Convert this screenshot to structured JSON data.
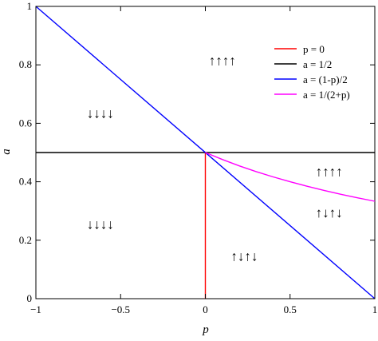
{
  "chart_data": {
    "type": "line",
    "xlabel": "p",
    "ylabel": "a",
    "xlim": [
      -1,
      1
    ],
    "ylim": [
      0,
      1
    ],
    "x_ticks": [
      {
        "value": -1,
        "label": "−1"
      },
      {
        "value": -0.5,
        "label": "−0.5"
      },
      {
        "value": 0,
        "label": "0"
      },
      {
        "value": 0.5,
        "label": "0.5"
      },
      {
        "value": 1,
        "label": "1"
      }
    ],
    "y_ticks": [
      {
        "value": 0,
        "label": "0"
      },
      {
        "value": 0.2,
        "label": "0.2"
      },
      {
        "value": 0.4,
        "label": "0.4"
      },
      {
        "value": 0.6,
        "label": "0.6"
      },
      {
        "value": 0.8,
        "label": "0.8"
      },
      {
        "value": 1,
        "label": "1"
      }
    ],
    "legend_position": "top-right",
    "series": [
      {
        "name": "p = 0",
        "color": "#ff0000",
        "x": [
          0,
          0
        ],
        "y": [
          0,
          0.5
        ]
      },
      {
        "name": "a = 1/2",
        "color": "#000000",
        "x": [
          -1,
          1
        ],
        "y": [
          0.5,
          0.5
        ]
      },
      {
        "name": "a = (1-p)/2",
        "color": "#0000ff",
        "x": [
          -1,
          1
        ],
        "y": [
          1,
          0
        ]
      },
      {
        "name": "a = 1/(2+p)",
        "color": "#ff00ff",
        "x": [
          0,
          0.1,
          0.2,
          0.3,
          0.4,
          0.5,
          0.6,
          0.7,
          0.8,
          0.9,
          1.0
        ],
        "y": [
          0.5,
          0.4762,
          0.4545,
          0.4348,
          0.4167,
          0.4,
          0.3846,
          0.3704,
          0.3571,
          0.3448,
          0.3333
        ]
      }
    ],
    "annotations": [
      {
        "text": "↑↑↑↑",
        "x": 0.1,
        "y": 0.81
      },
      {
        "text": "↓↓↓↓",
        "x": -0.62,
        "y": 0.63
      },
      {
        "text": "↓↓↓↓",
        "x": -0.62,
        "y": 0.25
      },
      {
        "text": "↑↑↑↑",
        "x": 0.73,
        "y": 0.43
      },
      {
        "text": "↑↓↑↓",
        "x": 0.73,
        "y": 0.29
      },
      {
        "text": "↑↓↑↓",
        "x": 0.23,
        "y": 0.14
      }
    ],
    "legend": [
      {
        "label": "p = 0",
        "color": "#ff0000"
      },
      {
        "label": "a = 1/2",
        "color": "#000000"
      },
      {
        "label": "a = (1-p)/2",
        "color": "#0000ff"
      },
      {
        "label": "a = 1/(2+p)",
        "color": "#ff00ff"
      }
    ]
  }
}
